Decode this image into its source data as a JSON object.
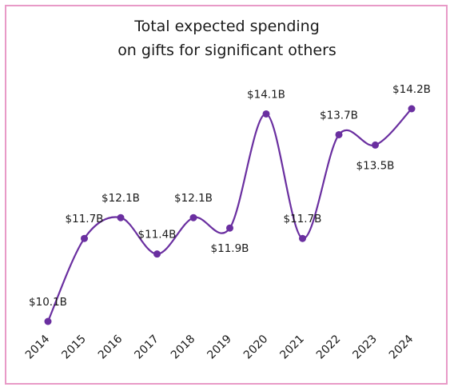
{
  "chart_data": {
    "type": "line",
    "title_lines": [
      "Total expected spending",
      "on gifts for significant others"
    ],
    "categories": [
      "2014",
      "2015",
      "2016",
      "2017",
      "2018",
      "2019",
      "2020",
      "2021",
      "2022",
      "2023",
      "2024"
    ],
    "values": [
      10.1,
      11.7,
      12.1,
      11.4,
      12.1,
      11.9,
      14.1,
      11.7,
      13.7,
      13.5,
      14.2
    ],
    "data_labels": [
      "$10.1B",
      "$11.7B",
      "$12.1B",
      "$11.4B",
      "$12.1B",
      "$11.9B",
      "$14.1B",
      "$11.7B",
      "$13.7B",
      "$13.5B",
      "$14.2B"
    ],
    "label_side": [
      "top",
      "top",
      "top",
      "top",
      "top",
      "bottom",
      "top",
      "top",
      "top",
      "bottom",
      "top"
    ],
    "ylim": [
      10.1,
      14.2
    ],
    "grid": false,
    "legend": "none",
    "line_color": "#6a2fa0",
    "point_color": "#6a2fa0"
  }
}
